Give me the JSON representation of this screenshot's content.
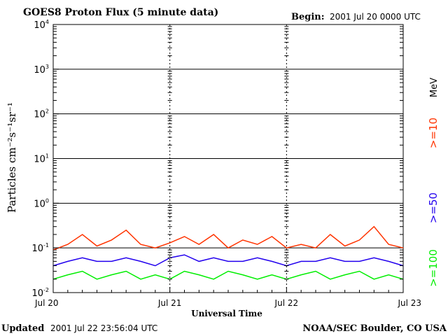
{
  "header": {
    "title": "GOES8 Proton Flux (5 minute data)",
    "begin_label": "Begin:",
    "begin_value": "2001 Jul 20 0000 UTC"
  },
  "footer": {
    "updated_label": "Updated",
    "updated_value": "2001 Jul 22 23:56:04 UTC",
    "credit": "NOAA/SEC Boulder, CO USA"
  },
  "chart_data": {
    "type": "line",
    "title": "GOES8 Proton Flux (5 minute data)",
    "xlabel": "Universal Time",
    "ylabel": "Particles cm⁻²s⁻¹sr⁻¹",
    "yscale": "log",
    "ylim": [
      0.01,
      10000
    ],
    "y_ticks": [
      {
        "value": 0.01,
        "base": "10",
        "exp": "-2"
      },
      {
        "value": 0.1,
        "base": "10",
        "exp": "-1"
      },
      {
        "value": 1,
        "base": "10",
        "exp": "0"
      },
      {
        "value": 10,
        "base": "10",
        "exp": "1"
      },
      {
        "value": 100,
        "base": "10",
        "exp": "2"
      },
      {
        "value": 1000,
        "base": "10",
        "exp": "3"
      },
      {
        "value": 10000,
        "base": "10",
        "exp": "4"
      }
    ],
    "x_ticks": [
      "Jul 20",
      "Jul 21",
      "Jul 22",
      "Jul 23"
    ],
    "xlim": [
      "2001-07-20 00:00",
      "2001-07-23 00:00"
    ],
    "grid": true,
    "legend_unit": "MeV",
    "series": [
      {
        "name": ">=10",
        "color": "#ff3300",
        "x": [
          "2001-07-20 00:00",
          "2001-07-20 03:00",
          "2001-07-20 06:00",
          "2001-07-20 09:00",
          "2001-07-20 12:00",
          "2001-07-20 15:00",
          "2001-07-20 18:00",
          "2001-07-20 21:00",
          "2001-07-21 00:00",
          "2001-07-21 03:00",
          "2001-07-21 06:00",
          "2001-07-21 09:00",
          "2001-07-21 12:00",
          "2001-07-21 15:00",
          "2001-07-21 18:00",
          "2001-07-21 21:00",
          "2001-07-22 00:00",
          "2001-07-22 03:00",
          "2001-07-22 06:00",
          "2001-07-22 09:00",
          "2001-07-22 12:00",
          "2001-07-22 15:00",
          "2001-07-22 18:00",
          "2001-07-22 21:00",
          "2001-07-23 00:00"
        ],
        "values": [
          0.09,
          0.12,
          0.2,
          0.11,
          0.15,
          0.25,
          0.12,
          0.1,
          0.13,
          0.18,
          0.12,
          0.2,
          0.1,
          0.15,
          0.12,
          0.18,
          0.1,
          0.12,
          0.1,
          0.2,
          0.11,
          0.15,
          0.3,
          0.12,
          0.1
        ]
      },
      {
        "name": ">=50",
        "color": "#2200ee",
        "x": [
          "2001-07-20 00:00",
          "2001-07-20 03:00",
          "2001-07-20 06:00",
          "2001-07-20 09:00",
          "2001-07-20 12:00",
          "2001-07-20 15:00",
          "2001-07-20 18:00",
          "2001-07-20 21:00",
          "2001-07-21 00:00",
          "2001-07-21 03:00",
          "2001-07-21 06:00",
          "2001-07-21 09:00",
          "2001-07-21 12:00",
          "2001-07-21 15:00",
          "2001-07-21 18:00",
          "2001-07-21 21:00",
          "2001-07-22 00:00",
          "2001-07-22 03:00",
          "2001-07-22 06:00",
          "2001-07-22 09:00",
          "2001-07-22 12:00",
          "2001-07-22 15:00",
          "2001-07-22 18:00",
          "2001-07-22 21:00",
          "2001-07-23 00:00"
        ],
        "values": [
          0.04,
          0.05,
          0.06,
          0.05,
          0.05,
          0.06,
          0.05,
          0.04,
          0.06,
          0.07,
          0.05,
          0.06,
          0.05,
          0.05,
          0.06,
          0.05,
          0.04,
          0.05,
          0.05,
          0.06,
          0.05,
          0.05,
          0.06,
          0.05,
          0.04
        ]
      },
      {
        "name": ">=100",
        "color": "#00ee00",
        "x": [
          "2001-07-20 00:00",
          "2001-07-20 03:00",
          "2001-07-20 06:00",
          "2001-07-20 09:00",
          "2001-07-20 12:00",
          "2001-07-20 15:00",
          "2001-07-20 18:00",
          "2001-07-20 21:00",
          "2001-07-21 00:00",
          "2001-07-21 03:00",
          "2001-07-21 06:00",
          "2001-07-21 09:00",
          "2001-07-21 12:00",
          "2001-07-21 15:00",
          "2001-07-21 18:00",
          "2001-07-21 21:00",
          "2001-07-22 00:00",
          "2001-07-22 03:00",
          "2001-07-22 06:00",
          "2001-07-22 09:00",
          "2001-07-22 12:00",
          "2001-07-22 15:00",
          "2001-07-22 18:00",
          "2001-07-22 21:00",
          "2001-07-23 00:00"
        ],
        "values": [
          0.02,
          0.025,
          0.03,
          0.02,
          0.025,
          0.03,
          0.02,
          0.025,
          0.02,
          0.03,
          0.025,
          0.02,
          0.03,
          0.025,
          0.02,
          0.025,
          0.02,
          0.025,
          0.03,
          0.02,
          0.025,
          0.03,
          0.02,
          0.025,
          0.02
        ]
      }
    ]
  }
}
